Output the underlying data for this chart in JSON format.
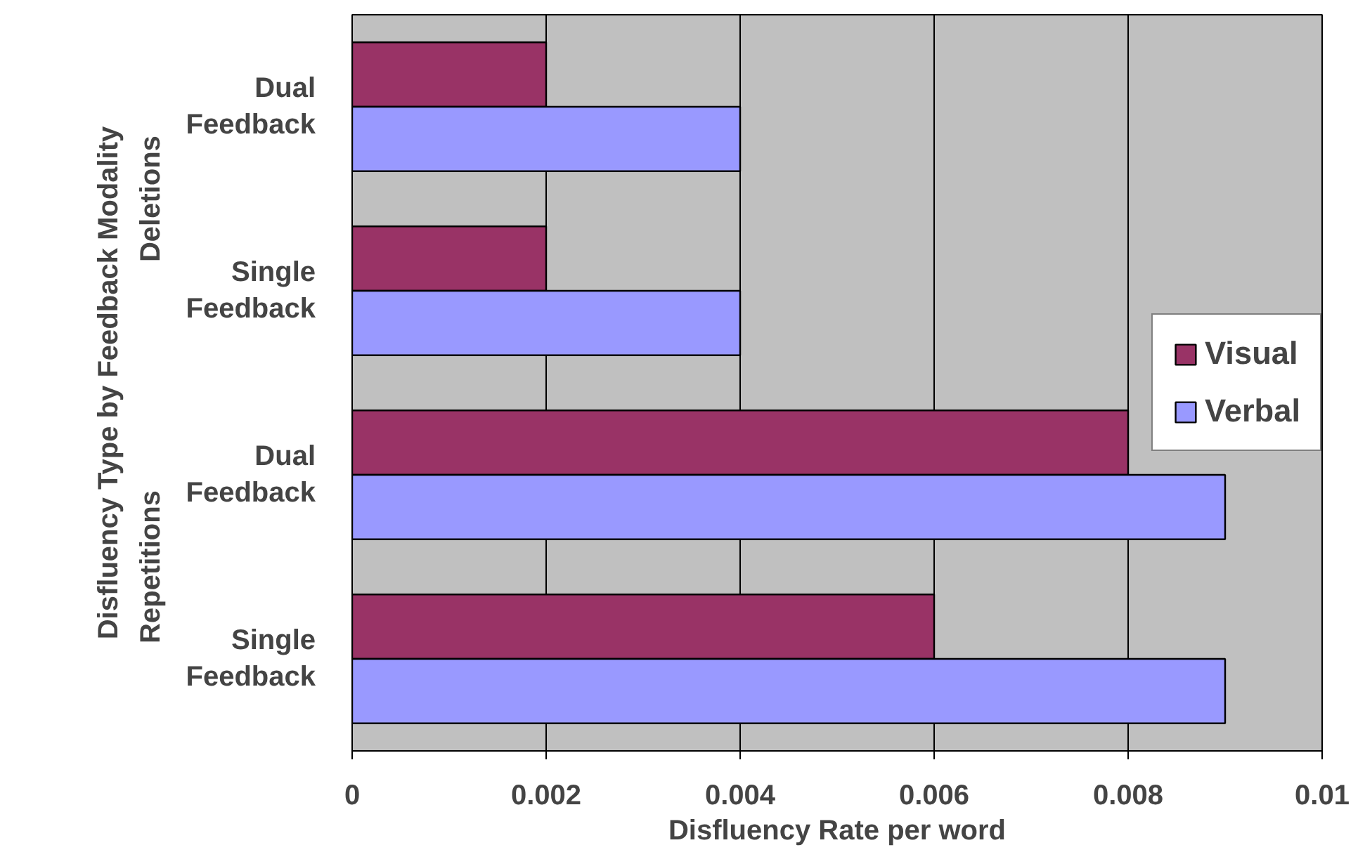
{
  "chart_data": {
    "type": "bar",
    "orientation": "horizontal",
    "xlabel": "Disfluency Rate per word",
    "ylabel": "Disfluency Type by Feedback Modality",
    "categories": [
      "Dual Feedback",
      "Single Feedback",
      "Dual Feedback",
      "Single Feedback"
    ],
    "annotations": [
      "Deletions",
      "Repetitions"
    ],
    "series": [
      {
        "name": "Visual",
        "color": "#993366",
        "values": [
          0.002,
          0.002,
          0.008,
          0.006
        ]
      },
      {
        "name": "Verbal",
        "color": "#9999ff",
        "values": [
          0.004,
          0.004,
          0.009,
          0.009
        ]
      }
    ],
    "xlim": [
      0,
      0.01
    ],
    "xticks": [
      0,
      0.002,
      0.004,
      0.006,
      0.008,
      0.01
    ],
    "grid": "x",
    "legend": "right"
  }
}
